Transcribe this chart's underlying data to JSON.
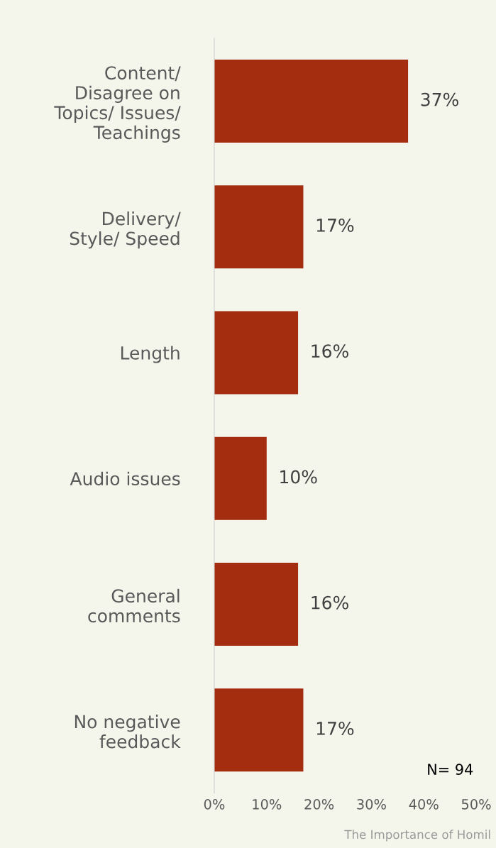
{
  "chart_data": {
    "type": "bar",
    "orientation": "horizontal",
    "categories": [
      "Content/\nDisagree on\nTopics/ Issues/\nTeachings",
      "Delivery/\nStyle/ Speed",
      "Length",
      "Audio issues",
      "General\ncomments",
      "No negative\nfeedback"
    ],
    "values": [
      37,
      17,
      16,
      10,
      16,
      17
    ],
    "value_labels": [
      "37%",
      "17%",
      "16%",
      "10%",
      "16%",
      "17%"
    ],
    "color": "#a52d0f",
    "xlim": [
      0,
      50
    ],
    "xticks": [
      {
        "value": 0,
        "label": "0%"
      },
      {
        "value": 10,
        "label": "10%"
      },
      {
        "value": 20,
        "label": "20%"
      },
      {
        "value": 30,
        "label": "30%"
      },
      {
        "value": 40,
        "label": "40%"
      },
      {
        "value": 50,
        "label": "50%"
      }
    ],
    "grid": false,
    "annotations": [
      "N= 94",
      "The Importance of Homil"
    ]
  }
}
